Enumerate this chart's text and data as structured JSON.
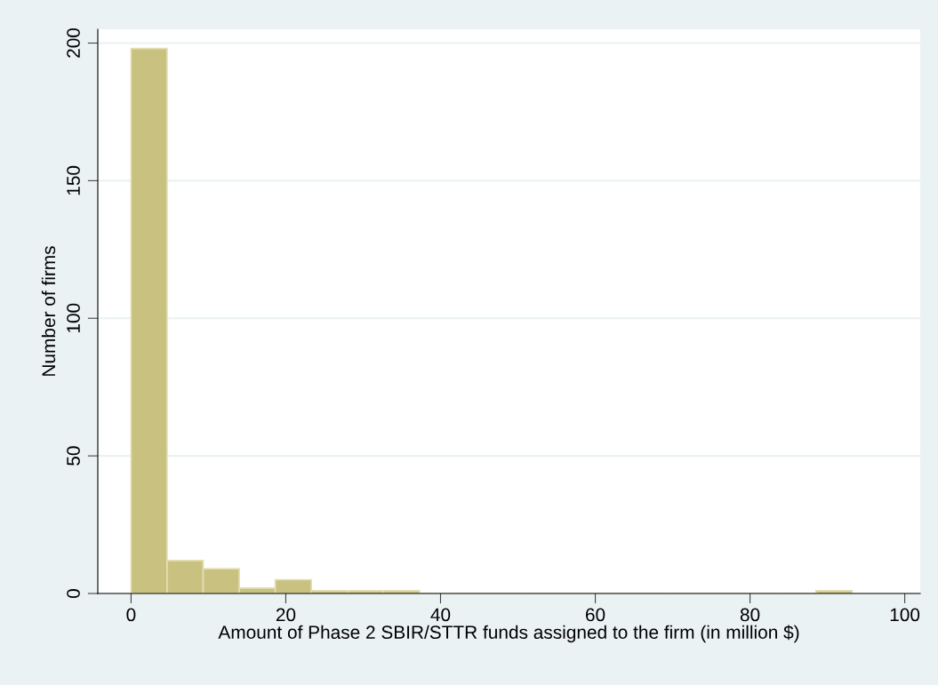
{
  "chart_data": {
    "type": "histogram",
    "xlabel": "Amount of Phase 2 SBIR/STTR funds assigned to the firm (in million $)",
    "ylabel": "Number of firms",
    "bins": [
      0,
      4.66,
      9.32,
      13.98,
      18.64,
      23.3,
      27.96,
      32.62,
      37.28,
      41.94,
      46.6,
      51.26,
      55.92,
      60.58,
      65.24,
      69.9,
      74.56,
      79.22,
      83.88,
      88.54,
      93.2
    ],
    "values": [
      198,
      12,
      9,
      2,
      5,
      1,
      1,
      1,
      0,
      0,
      0,
      0,
      0,
      0,
      0,
      0,
      0,
      0,
      0,
      1
    ],
    "color": "#c8c17f",
    "xlim": [
      -4.3,
      102
    ],
    "ylim": [
      0,
      205
    ],
    "xticks": [
      0,
      20,
      40,
      60,
      80,
      100
    ],
    "yticks": [
      0,
      50,
      100,
      150,
      200
    ],
    "grid": "y"
  }
}
